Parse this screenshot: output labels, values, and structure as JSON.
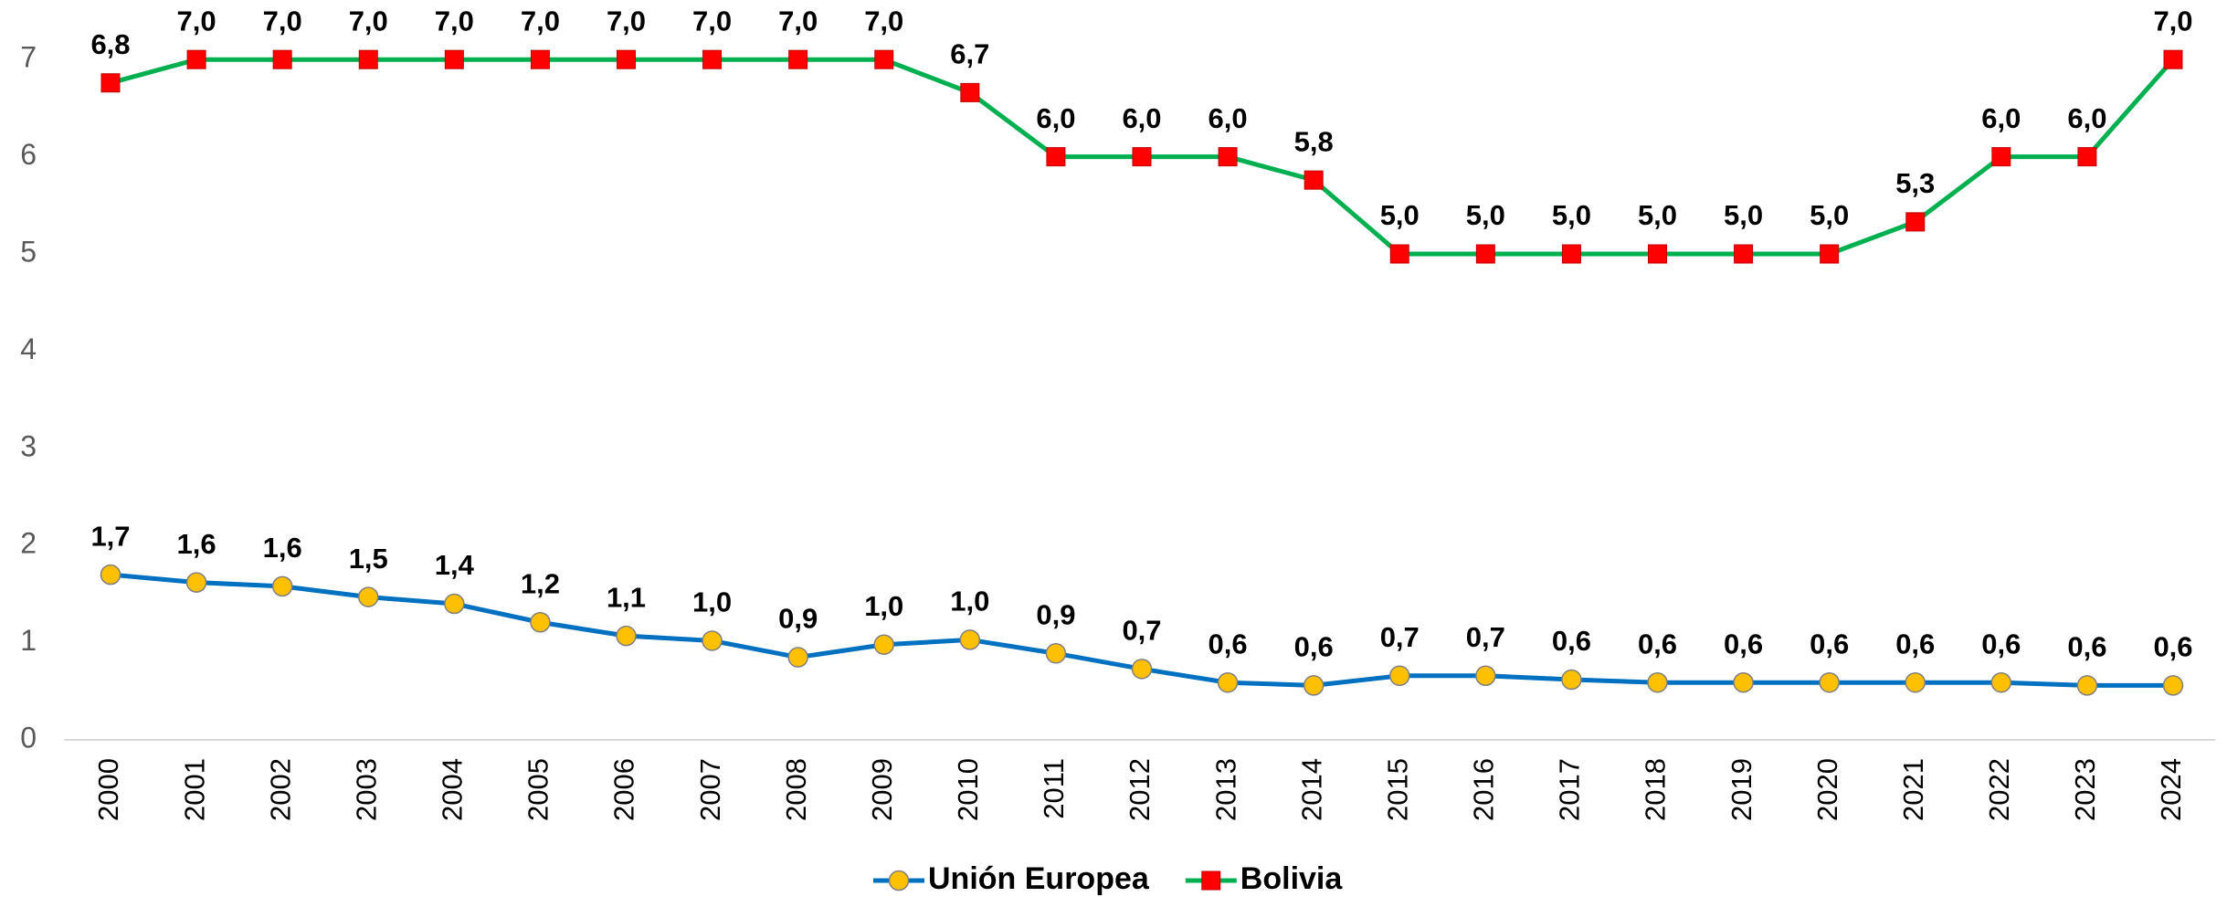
{
  "chart_data": {
    "type": "line",
    "categories": [
      "2000",
      "2001",
      "2002",
      "2003",
      "2004",
      "2005",
      "2006",
      "2007",
      "2008",
      "2009",
      "2010",
      "2011",
      "2012",
      "2013",
      "2014",
      "2015",
      "2016",
      "2017",
      "2018",
      "2019",
      "2020",
      "2021",
      "2022",
      "2023",
      "2024"
    ],
    "series": [
      {
        "name": "Unión Europea",
        "color": "#0070c0",
        "marker": "circle",
        "marker_color": "#ffc000",
        "values": [
          1.7,
          1.62,
          1.58,
          1.47,
          1.4,
          1.21,
          1.07,
          1.02,
          0.85,
          0.98,
          1.03,
          0.89,
          0.73,
          0.59,
          0.56,
          0.66,
          0.66,
          0.62,
          0.59,
          0.59,
          0.59,
          0.59,
          0.59,
          0.56,
          0.56
        ],
        "value_labels": [
          "1,7",
          "1,6",
          "1,6",
          "1,5",
          "1,4",
          "1,2",
          "1,1",
          "1,0",
          "0,9",
          "1,0",
          "1,0",
          "0,9",
          "0,7",
          "0,6",
          "0,6",
          "0,7",
          "0,7",
          "0,6",
          "0,6",
          "0,6",
          "0,6",
          "0,6",
          "0,6",
          "0,6",
          "0,6"
        ]
      },
      {
        "name": "Bolivia",
        "color": "#00b050",
        "marker": "square",
        "marker_color": "#ff0000",
        "values": [
          6.76,
          7,
          7,
          7,
          7,
          7,
          7,
          7,
          7,
          7,
          6.66,
          6,
          6,
          6,
          5.76,
          5,
          5,
          5,
          5,
          5,
          5,
          5.33,
          6,
          6,
          7
        ],
        "value_labels": [
          "6,8",
          "7,0",
          "7,0",
          "7,0",
          "7,0",
          "7,0",
          "7,0",
          "7,0",
          "7,0",
          "7,0",
          "6,7",
          "6,0",
          "6,0",
          "6,0",
          "5,8",
          "5,0",
          "5,0",
          "5,0",
          "5,0",
          "5,0",
          "5,0",
          "5,3",
          "6,0",
          "6,0",
          "7,0"
        ]
      }
    ],
    "ylim": [
      0,
      7.5
    ],
    "yticks": [
      0,
      1,
      2,
      3,
      4,
      5,
      6,
      7
    ],
    "grid": false,
    "legend": "bottom"
  }
}
